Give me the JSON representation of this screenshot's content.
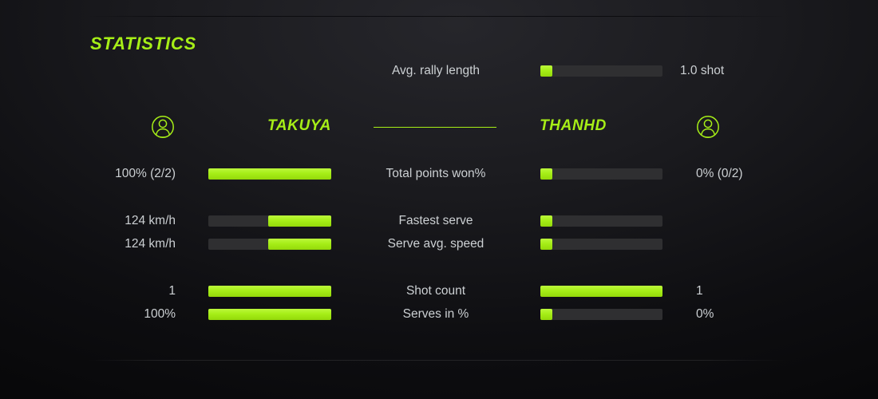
{
  "title": "STATISTICS",
  "colors": {
    "accent": "#a6ee17",
    "bar_track": "#2f2f31",
    "text": "#ccd0d3"
  },
  "players": {
    "left": {
      "name": "TAKUYA",
      "icon": "user-avatar-icon"
    },
    "right": {
      "name": "THANHD",
      "icon": "user-avatar-icon"
    }
  },
  "avg_rally": {
    "label": "Avg. rally length",
    "value": "1.0 shot",
    "fill": 10
  },
  "rows": [
    {
      "label": "Total points won%",
      "left_value": "100% (2/2)",
      "right_value": "0% (0/2)",
      "left_fill": 100,
      "right_fill": 10
    },
    {
      "label": "Fastest serve",
      "left_value": "124 km/h",
      "right_value": "",
      "left_fill": 51,
      "right_fill": 10
    },
    {
      "label": "Serve avg. speed",
      "left_value": "124 km/h",
      "right_value": "",
      "left_fill": 51,
      "right_fill": 10
    },
    {
      "label": "Shot count",
      "left_value": "1",
      "right_value": "1",
      "left_fill": 100,
      "right_fill": 100
    },
    {
      "label": "Serves in %",
      "left_value": "100%",
      "right_value": "0%",
      "left_fill": 100,
      "right_fill": 10
    }
  ]
}
